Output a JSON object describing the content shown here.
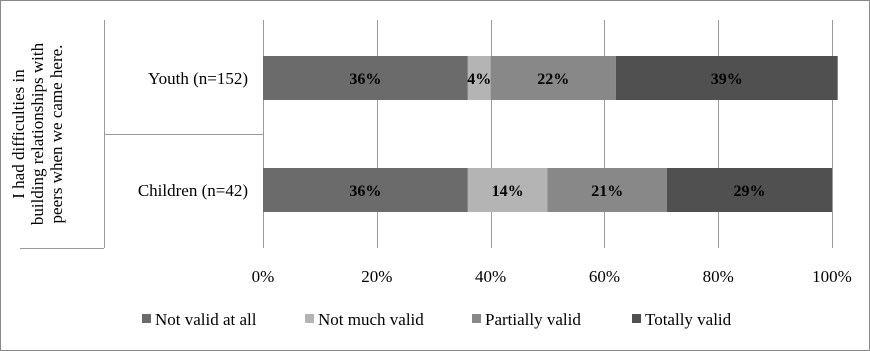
{
  "chart_data": {
    "type": "bar",
    "orientation": "horizontal",
    "stacked": true,
    "percent": true,
    "group_label": "I had difficulties in building relationships with peers when we came here.",
    "group_label_lines": [
      "I  had difficulties in",
      "building relationships with",
      "peers when we came here."
    ],
    "categories": [
      "Youth (n=152)",
      "Children (n=42)"
    ],
    "series": [
      {
        "name": "Not valid at all",
        "color": "#6b6b6b",
        "values": [
          36,
          36
        ],
        "labels": [
          "36%",
          "36%"
        ]
      },
      {
        "name": "Not much valid",
        "color": "#b4b4b4",
        "values": [
          4,
          14
        ],
        "labels": [
          "4%",
          "14%"
        ]
      },
      {
        "name": "Partially valid",
        "color": "#888888",
        "values": [
          22,
          21
        ],
        "labels": [
          "22%",
          "21%"
        ]
      },
      {
        "name": "Totally valid",
        "color": "#505050",
        "values": [
          39,
          29
        ],
        "labels": [
          "39%",
          "29%"
        ]
      }
    ],
    "xlim": [
      0,
      100
    ],
    "xticks": [
      0,
      20,
      40,
      60,
      80,
      100
    ],
    "xtick_labels": [
      "0%",
      "20%",
      "40%",
      "60%",
      "80%",
      "100%"
    ],
    "grid": true,
    "legend_position": "bottom"
  }
}
